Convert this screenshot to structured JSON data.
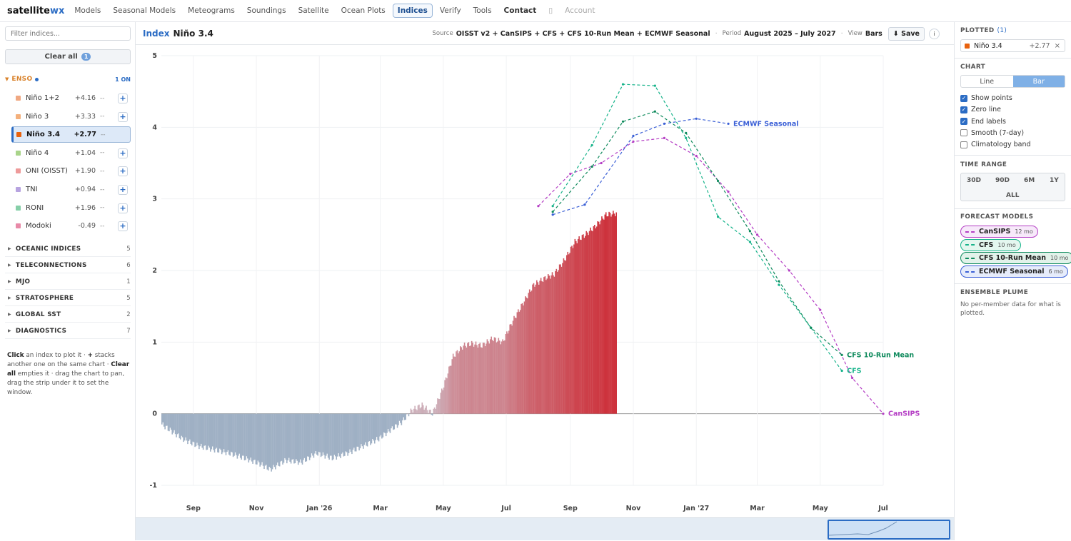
{
  "nav": {
    "brand_main": "satellite",
    "brand_accent": "wx",
    "items": [
      "Models",
      "Seasonal Models",
      "Meteograms",
      "Soundings",
      "Satellite",
      "Ocean Plots",
      "Indices",
      "Verify",
      "Tools",
      "Contact"
    ],
    "account": "Account"
  },
  "sidebar": {
    "filter_placeholder": "Filter indices...",
    "clear_all": "Clear all",
    "clear_count": "1",
    "enso": {
      "name": "ENSO",
      "status": "1 ON"
    },
    "indices": [
      {
        "name": "Niño 1+2",
        "value": "+4.16",
        "trend": "--",
        "color": "#f0a882"
      },
      {
        "name": "Niño 3",
        "value": "+3.33",
        "trend": "--",
        "color": "#f4b07c"
      },
      {
        "name": "Niño 3.4",
        "value": "+2.77",
        "trend": "--",
        "color": "#e8620e"
      },
      {
        "name": "Niño 4",
        "value": "+1.04",
        "trend": "--",
        "color": "#a9d48a"
      },
      {
        "name": "ONI (OISST)",
        "value": "+1.90",
        "trend": "--",
        "color": "#ee9a9a"
      },
      {
        "name": "TNI",
        "value": "+0.94",
        "trend": "--",
        "color": "#b7a3e0"
      },
      {
        "name": "RONI",
        "value": "+1.96",
        "trend": "--",
        "color": "#86cfa8"
      },
      {
        "name": "Modoki",
        "value": "-0.49",
        "trend": "--",
        "color": "#e88aa8"
      }
    ],
    "categories": [
      {
        "name": "OCEANIC INDICES",
        "count": "5"
      },
      {
        "name": "TELECONNECTIONS",
        "count": "6"
      },
      {
        "name": "MJO",
        "count": "1"
      },
      {
        "name": "STRATOSPHERE",
        "count": "5"
      },
      {
        "name": "GLOBAL SST",
        "count": "2"
      },
      {
        "name": "DIAGNOSTICS",
        "count": "7"
      }
    ],
    "help": {
      "p1": "Click",
      "p2": " an index to plot it · ",
      "p3": "+",
      "p4": " stacks another one on the same chart · ",
      "p5": "Clear all",
      "p6": " empties it · drag the chart to pan, drag the strip under it to set the window."
    }
  },
  "header": {
    "label": "Index",
    "title": "Niño 3.4",
    "source_key": "Source",
    "source": "OISST v2 + CanSIPS + CFS + CFS 10-Run Mean + ECMWF Seasonal",
    "period_key": "Period",
    "period": "August 2025 – July 2027",
    "view_key": "View",
    "view": "Bars",
    "save": "⬇ Save",
    "info": "i"
  },
  "right": {
    "plotted_title": "PLOTTED",
    "plotted_count": "(1)",
    "plotted": {
      "name": "Niño 3.4",
      "value": "+2.77",
      "color": "#e8620e"
    },
    "chart_title": "CHART",
    "chart_modes": [
      "Line",
      "Bar"
    ],
    "options": [
      {
        "label": "Show points",
        "checked": true
      },
      {
        "label": "Zero line",
        "checked": true
      },
      {
        "label": "End labels",
        "checked": true
      },
      {
        "label": "Smooth (7-day)",
        "checked": false
      },
      {
        "label": "Climatology band",
        "checked": false
      }
    ],
    "time_range_title": "TIME RANGE",
    "ranges": [
      "30D",
      "90D",
      "6M",
      "1Y",
      "ALL"
    ],
    "forecast_title": "FORECAST MODELS",
    "models": [
      {
        "name": "CanSIPS",
        "months": "12 mo",
        "color": "#b43dc4"
      },
      {
        "name": "CFS",
        "months": "10 mo",
        "color": "#16b38a"
      },
      {
        "name": "CFS 10-Run Mean",
        "months": "10 mo",
        "color": "#0e8a5c"
      },
      {
        "name": "ECMWF Seasonal",
        "months": "6 mo",
        "color": "#3a5fd6"
      }
    ],
    "plume_title": "ENSEMBLE PLUME",
    "plume_text": "No per-member data for what is plotted."
  },
  "chart_data": {
    "type": "bar",
    "title": "Niño 3.4",
    "ylim": [
      -1,
      5
    ],
    "yticks": [
      -1,
      0,
      1,
      2,
      3,
      4,
      5
    ],
    "xticks": [
      "Sep",
      "Nov",
      "Jan '26",
      "Mar",
      "May",
      "Jul",
      "Sep",
      "Nov",
      "Jan '27",
      "Mar",
      "May",
      "Jul"
    ],
    "grid": true,
    "observed": {
      "start": "2025-08-01",
      "end": "2026-08-15",
      "keypoints_days_values": [
        [
          0,
          -0.15
        ],
        [
          20,
          -0.35
        ],
        [
          35,
          -0.45
        ],
        [
          50,
          -0.5
        ],
        [
          65,
          -0.55
        ],
        [
          80,
          -0.62
        ],
        [
          95,
          -0.7
        ],
        [
          105,
          -0.78
        ],
        [
          120,
          -0.65
        ],
        [
          135,
          -0.68
        ],
        [
          150,
          -0.55
        ],
        [
          165,
          -0.62
        ],
        [
          180,
          -0.55
        ],
        [
          195,
          -0.45
        ],
        [
          210,
          -0.35
        ],
        [
          222,
          -0.22
        ],
        [
          232,
          -0.12
        ],
        [
          242,
          0.05
        ],
        [
          252,
          0.12
        ],
        [
          262,
          0.0
        ],
        [
          272,
          0.35
        ],
        [
          282,
          0.8
        ],
        [
          292,
          0.95
        ],
        [
          300,
          0.98
        ],
        [
          310,
          0.95
        ],
        [
          320,
          1.05
        ],
        [
          330,
          1.0
        ],
        [
          340,
          1.3
        ],
        [
          350,
          1.55
        ],
        [
          360,
          1.8
        ],
        [
          372,
          1.9
        ],
        [
          380,
          1.95
        ],
        [
          390,
          2.15
        ],
        [
          400,
          2.4
        ],
        [
          410,
          2.5
        ],
        [
          420,
          2.62
        ],
        [
          430,
          2.78
        ],
        [
          440,
          2.8
        ]
      ]
    },
    "series": [
      {
        "name": "CanSIPS",
        "color": "#b43dc4",
        "points": [
          [
            "2026-08-01",
            2.9
          ],
          [
            "2026-09-01",
            3.35
          ],
          [
            "2026-10-01",
            3.5
          ],
          [
            "2026-11-01",
            3.8
          ],
          [
            "2026-12-01",
            3.85
          ],
          [
            "2027-01-01",
            3.6
          ],
          [
            "2027-02-01",
            3.1
          ],
          [
            "2027-03-01",
            2.5
          ],
          [
            "2027-04-01",
            2.0
          ],
          [
            "2027-05-01",
            1.45
          ],
          [
            "2027-06-01",
            0.5
          ],
          [
            "2027-07-01",
            0.0
          ]
        ]
      },
      {
        "name": "CFS",
        "color": "#16b38a",
        "points": [
          [
            "2026-08-15",
            2.9
          ],
          [
            "2026-09-22",
            3.75
          ],
          [
            "2026-10-22",
            4.6
          ],
          [
            "2026-11-22",
            4.58
          ],
          [
            "2026-12-22",
            3.85
          ],
          [
            "2027-01-22",
            2.75
          ],
          [
            "2027-02-22",
            2.4
          ],
          [
            "2027-03-22",
            1.8
          ],
          [
            "2027-04-22",
            1.2
          ],
          [
            "2027-05-22",
            0.6
          ]
        ]
      },
      {
        "name": "CFS 10-Run Mean",
        "color": "#0e8a5c",
        "points": [
          [
            "2026-08-15",
            2.82
          ],
          [
            "2026-09-22",
            3.45
          ],
          [
            "2026-10-22",
            4.08
          ],
          [
            "2026-11-22",
            4.22
          ],
          [
            "2026-12-22",
            3.92
          ],
          [
            "2027-01-22",
            3.25
          ],
          [
            "2027-02-22",
            2.55
          ],
          [
            "2027-03-22",
            1.85
          ],
          [
            "2027-04-22",
            1.2
          ],
          [
            "2027-05-22",
            0.82
          ]
        ]
      },
      {
        "name": "ECMWF Seasonal",
        "color": "#3a5fd6",
        "points": [
          [
            "2026-08-15",
            2.78
          ],
          [
            "2026-09-15",
            2.92
          ],
          [
            "2026-11-01",
            3.88
          ],
          [
            "2026-12-01",
            4.05
          ],
          [
            "2027-01-01",
            4.12
          ],
          [
            "2027-02-01",
            4.05
          ]
        ]
      }
    ],
    "end_labels": [
      "ECMWF Seasonal",
      "CFS 10-Run Mean",
      "CFS",
      "CanSIPS"
    ]
  }
}
